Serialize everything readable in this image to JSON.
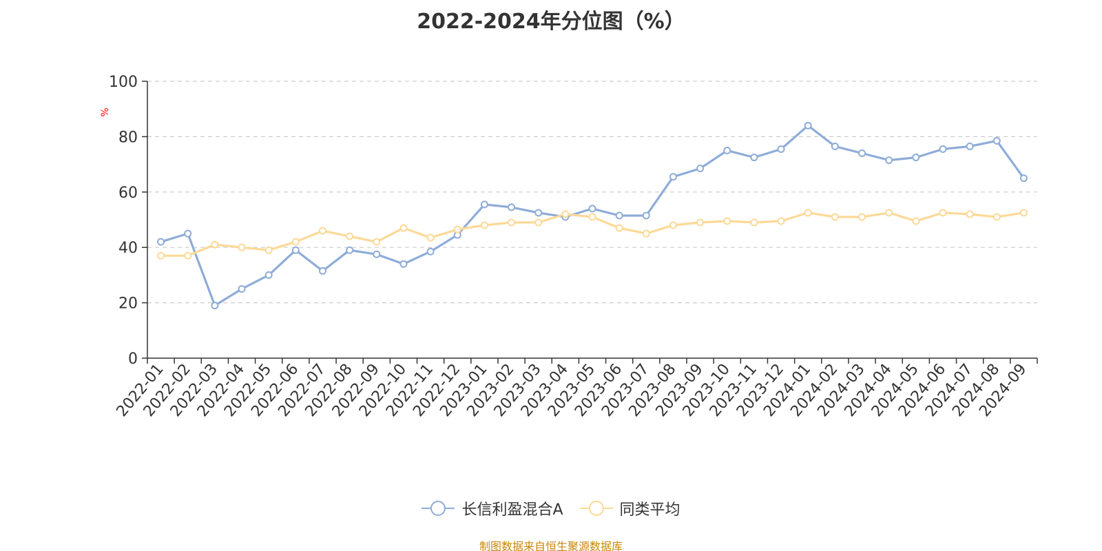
{
  "chart_data": {
    "type": "line",
    "title": "2022-2024年分位图（%）",
    "ylabel": "%",
    "xlabel": "",
    "ylim": [
      0,
      100
    ],
    "yticks": [
      0,
      20,
      40,
      60,
      80,
      100
    ],
    "grid": true,
    "legend_position": "bottom",
    "categories": [
      "2022-01",
      "2022-02",
      "2022-03",
      "2022-04",
      "2022-05",
      "2022-06",
      "2022-07",
      "2022-08",
      "2022-09",
      "2022-10",
      "2022-11",
      "2022-12",
      "2023-01",
      "2023-02",
      "2023-03",
      "2023-04",
      "2023-05",
      "2023-06",
      "2023-07",
      "2023-08",
      "2023-09",
      "2023-10",
      "2023-11",
      "2023-12",
      "2024-01",
      "2024-02",
      "2024-03",
      "2024-04",
      "2024-05",
      "2024-06",
      "2024-07",
      "2024-08",
      "2024-09"
    ],
    "series": [
      {
        "name": "长信利盈混合A",
        "color": "#8eacd8",
        "values": [
          42,
          45,
          19,
          25,
          30,
          39,
          31.5,
          39,
          37.5,
          34,
          38.5,
          44.5,
          55.5,
          54.5,
          52.5,
          51,
          54,
          51.5,
          51.5,
          65.5,
          68.5,
          75,
          72.5,
          75.5,
          84,
          76.5,
          74,
          71.5,
          72.5,
          75.5,
          76.5,
          78.5,
          65
        ]
      },
      {
        "name": "同类平均",
        "color": "#fcd997",
        "values": [
          37,
          37,
          41,
          40,
          39,
          42,
          46,
          44,
          42,
          47,
          43.5,
          46.5,
          48,
          49,
          49,
          52,
          51,
          47,
          45,
          48,
          49,
          49.5,
          49,
          49.5,
          52.5,
          51,
          51,
          52.5,
          49.5,
          52.5,
          52,
          51,
          52.5
        ]
      }
    ]
  },
  "source_note": "制图数据来自恒生聚源数据库",
  "colors": {
    "axis": "#333333",
    "grid": "#cccccc",
    "ylabel": "#ff0000",
    "source_note": "#c8860a",
    "text": "#333333"
  }
}
